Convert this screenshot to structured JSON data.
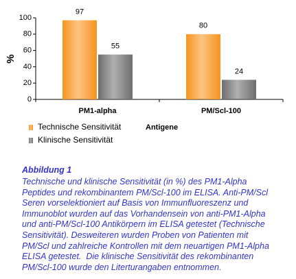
{
  "chart_data": {
    "type": "bar",
    "ylabel": "%",
    "xlabel": "Antigene",
    "categories": [
      "PM1-alpha",
      "PM/Scl-100"
    ],
    "series": [
      {
        "name": "Technische Sensitivität",
        "color": "#f7941d",
        "values": [
          97,
          80
        ]
      },
      {
        "name": "Klinische Sensitivität",
        "color": "#6e6e6e",
        "values": [
          55,
          24
        ]
      }
    ],
    "ylim": [
      0,
      100
    ],
    "yticks": [
      0,
      20,
      40,
      60,
      80,
      100
    ],
    "grid": false,
    "legend": "bottom-left"
  },
  "caption": {
    "title": "Abbildung 1",
    "lines": [
      "Technische und klinische Sensitivität (in %) des PM1-Alpha",
      "Peptides und rekombinantem PM/Scl-100 im ELISA. Anti-PM/Scl",
      "Seren vorselektioniert auf Basis von Immunfluoreszenz und",
      "Immunoblot wurden auf das Vorhandensein von anti-PM1-Alpha",
      "und anti-PM/Scl-100 Antikörpern im ELISA getestet (Technische",
      "Sensitivität). Desweiteren wurden Proben von Patienten mit",
      "PM/Scl und zahlreiche Kontrollen mit dem neuartigen PM1-Alpha",
      "ELISA getestet.  Die klinische Sensitivität des rekombinanten",
      "PM/Scl-100 wurde den Literturangaben entnommen."
    ]
  }
}
